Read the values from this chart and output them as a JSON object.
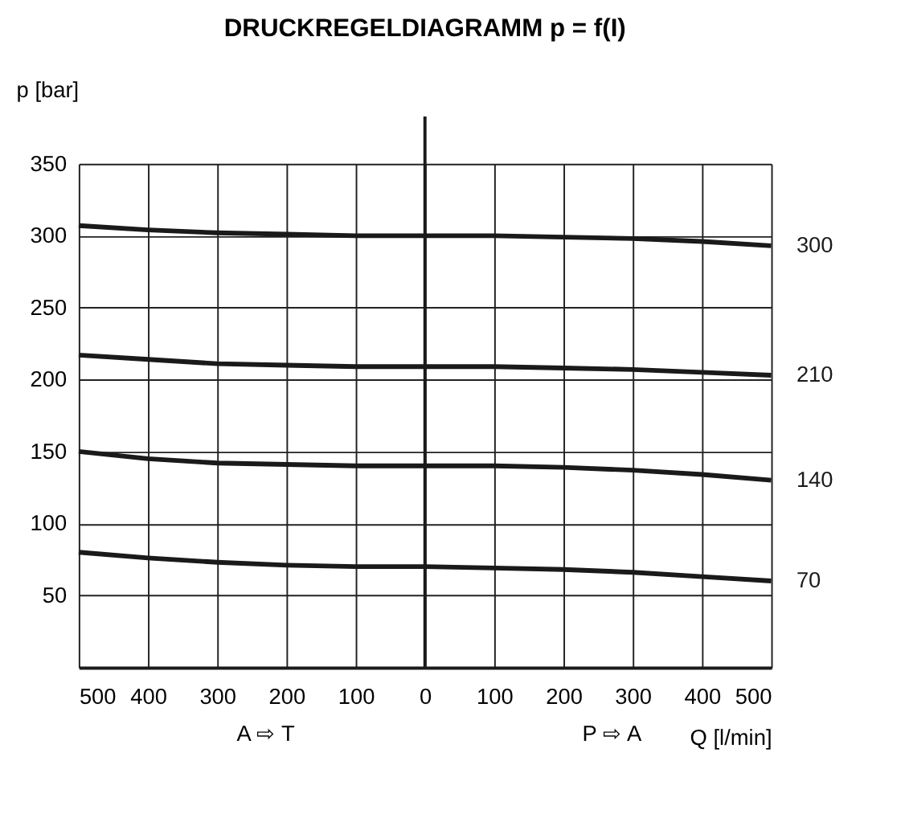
{
  "chart_data": {
    "type": "line",
    "title": "DRUCKREGELDIAGRAMM p = f(I)",
    "ylabel": "p [bar]",
    "xlabel": "Q [l/min]",
    "annotations": [
      "A ⇨ T",
      "P ⇨ A"
    ],
    "x": [
      -500,
      -400,
      -300,
      -200,
      -100,
      0,
      100,
      200,
      300,
      400,
      500
    ],
    "series": [
      {
        "name": "300",
        "color": "#1a1a1a",
        "values": [
          307,
          304,
          302,
          301,
          300,
          300,
          300,
          299,
          298,
          296,
          293
        ]
      },
      {
        "name": "210",
        "color": "#1a1a1a",
        "values": [
          217,
          214,
          211,
          210,
          209,
          209,
          209,
          208,
          207,
          205,
          203
        ]
      },
      {
        "name": "140",
        "color": "#1a1a1a",
        "values": [
          150,
          145,
          142,
          141,
          140,
          140,
          140,
          139,
          137,
          134,
          130
        ]
      },
      {
        "name": "70",
        "color": "#1a1a1a",
        "values": [
          80,
          76,
          73,
          71,
          70,
          70,
          69,
          68,
          66,
          63,
          60
        ]
      }
    ],
    "xlim": [
      -500,
      500
    ],
    "xticks": [
      {
        "value": -500,
        "label": "500"
      },
      {
        "value": -400,
        "label": "400"
      },
      {
        "value": -300,
        "label": "300"
      },
      {
        "value": -200,
        "label": "200"
      },
      {
        "value": -100,
        "label": "100"
      },
      0,
      100,
      200,
      300,
      400,
      500
    ],
    "ylim": [
      0,
      350
    ],
    "yticks": [
      {
        "value": 0,
        "label": null
      },
      50,
      100,
      150,
      200,
      250,
      300,
      350
    ],
    "ref_lines": [
      {
        "axis": "x",
        "value": 0,
        "color": "#1a1a1a"
      }
    ],
    "grid": true,
    "marker": "none",
    "line_style": "solid"
  }
}
